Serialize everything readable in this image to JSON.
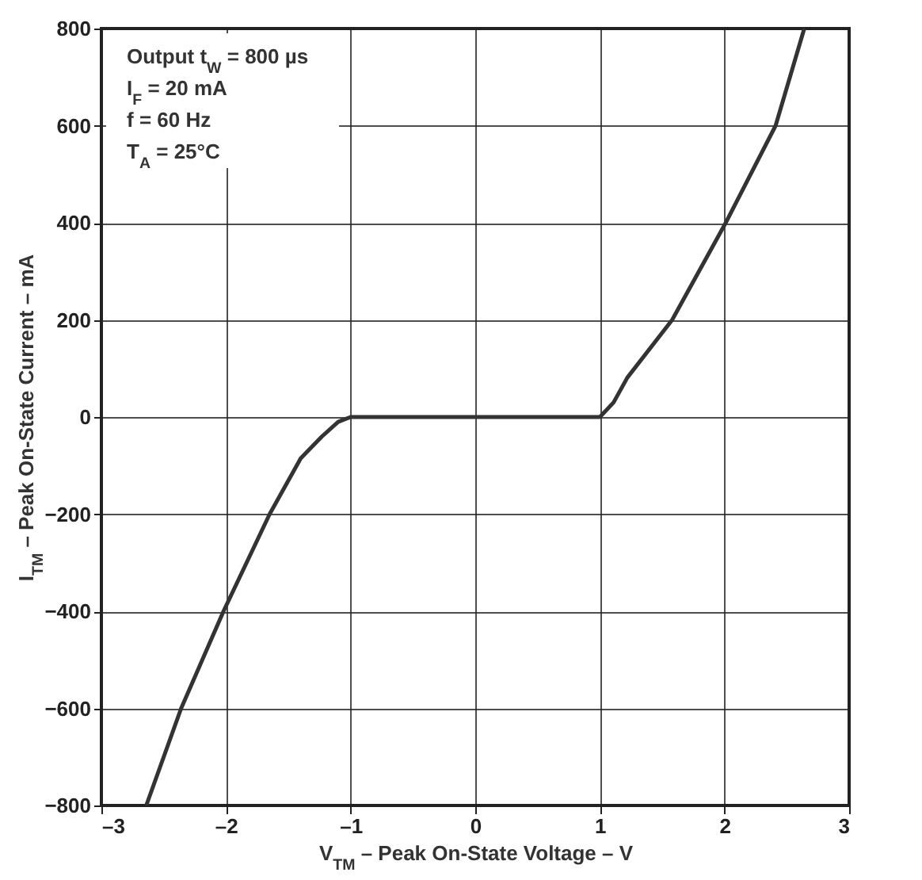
{
  "chart_data": {
    "type": "line",
    "xlabel": "V$_{TM}$ – Peak On-State Voltage – V",
    "ylabel": "I$_{TM}$ – Peak On-State Current – mA",
    "annotations": [
      "Output t$_{W}$ = 800 µs",
      "I$_{F}$ = 20 mA",
      "f = 60 Hz",
      "T$_{A}$ = 25°C"
    ],
    "series": [
      {
        "color": "#333333",
        "x": [
          -2.64,
          -2.36,
          -2.02,
          -1.65,
          -1.4,
          -1.23,
          -1.1,
          -1,
          0,
          1,
          1.11,
          1.22,
          1.58,
          2.01,
          2.41,
          2.64
        ],
        "values": [
          -800,
          -600,
          -400,
          -200,
          -85,
          -40,
          -10,
          0,
          0,
          0,
          30,
          81,
          200,
          400,
          600,
          800
        ]
      }
    ],
    "xlim": [
      -3,
      3
    ],
    "xticks": [
      {
        "value": -3,
        "label": "–3"
      },
      {
        "value": -2,
        "label": "–2"
      },
      {
        "value": -1,
        "label": "–1"
      },
      0,
      1,
      2,
      3
    ],
    "ylim": [
      -800,
      800
    ],
    "yticks": [
      -800,
      -600,
      -400,
      -200,
      0,
      200,
      400,
      600,
      800
    ],
    "grid": true,
    "marker": "none",
    "line_style": "solid"
  }
}
